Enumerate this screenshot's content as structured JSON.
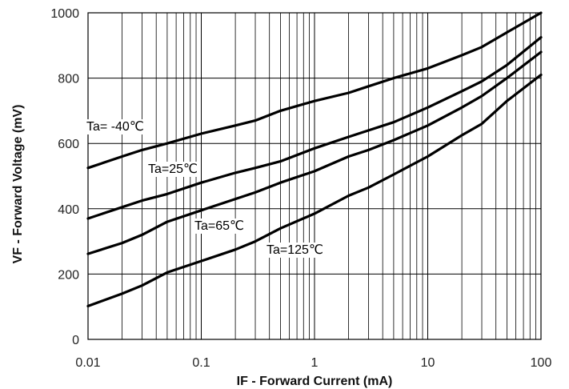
{
  "chart_data": {
    "type": "line",
    "xscale": "log",
    "xlim": [
      0.01,
      100
    ],
    "ylim": [
      0,
      1000
    ],
    "xlabel": "IF - Forward Current (mA)",
    "ylabel": "VF - Forward Voltage (mV)",
    "title": "",
    "grid": true,
    "x_ticks": [
      "0.01",
      "0.1",
      "1",
      "10",
      "100"
    ],
    "y_ticks": [
      "0",
      "200",
      "400",
      "600",
      "800",
      "1000"
    ],
    "series": [
      {
        "name": "Ta= -40℃",
        "x": [
          0.01,
          0.02,
          0.03,
          0.05,
          0.1,
          0.2,
          0.3,
          0.5,
          1,
          2,
          3,
          5,
          10,
          20,
          30,
          50,
          100
        ],
        "y": [
          525,
          560,
          580,
          600,
          630,
          655,
          670,
          700,
          730,
          755,
          775,
          800,
          830,
          870,
          895,
          940,
          1000
        ]
      },
      {
        "name": "Ta=25℃",
        "x": [
          0.01,
          0.02,
          0.03,
          0.05,
          0.1,
          0.2,
          0.3,
          0.5,
          1,
          2,
          3,
          5,
          10,
          20,
          30,
          50,
          100
        ],
        "y": [
          370,
          405,
          425,
          445,
          480,
          510,
          525,
          545,
          585,
          620,
          640,
          665,
          710,
          760,
          790,
          840,
          925
        ]
      },
      {
        "name": "Ta=65℃",
        "x": [
          0.01,
          0.02,
          0.03,
          0.05,
          0.1,
          0.2,
          0.3,
          0.5,
          1,
          2,
          3,
          5,
          10,
          20,
          30,
          50,
          100
        ],
        "y": [
          262,
          295,
          320,
          360,
          395,
          430,
          450,
          480,
          515,
          560,
          580,
          610,
          655,
          710,
          745,
          800,
          880
        ]
      },
      {
        "name": "Ta=125℃",
        "x": [
          0.01,
          0.02,
          0.03,
          0.05,
          0.1,
          0.2,
          0.3,
          0.5,
          1,
          2,
          3,
          5,
          10,
          20,
          30,
          50,
          100
        ],
        "y": [
          102,
          140,
          165,
          205,
          240,
          275,
          300,
          340,
          385,
          440,
          465,
          505,
          560,
          625,
          660,
          730,
          810
        ]
      }
    ]
  }
}
